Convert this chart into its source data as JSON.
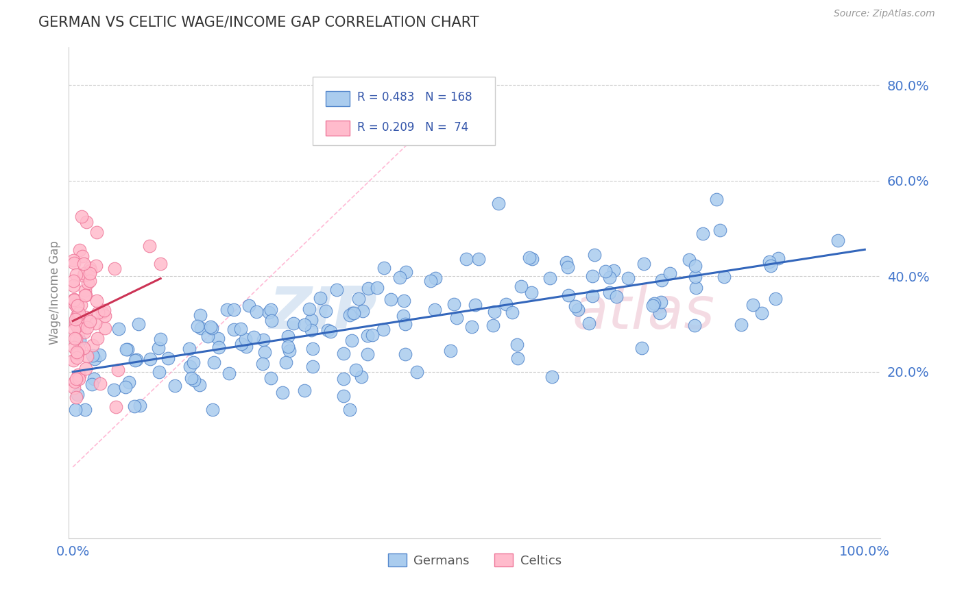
{
  "title": "GERMAN VS CELTIC WAGE/INCOME GAP CORRELATION CHART",
  "source_text": "Source: ZipAtlas.com",
  "ylabel": "Wage/Income Gap",
  "german_R": 0.483,
  "german_N": 168,
  "celtic_R": 0.209,
  "celtic_N": 74,
  "german_fill_color": "#aaccee",
  "german_edge_color": "#5588cc",
  "celtic_fill_color": "#ffbbcc",
  "celtic_edge_color": "#ee7799",
  "trend_german_color": "#3366bb",
  "trend_celtic_color": "#cc3355",
  "ref_line_color": "#ffaacc",
  "legend_box_color": "#aaccee",
  "legend_pink_color": "#ffbbcc",
  "legend_text_color": "#3355aa",
  "legend_label_color": "#333333",
  "background_color": "#ffffff",
  "grid_color": "#cccccc",
  "title_color": "#333333",
  "tick_color": "#4477cc",
  "watermark_color": "#ddeeff",
  "watermark_color2": "#ddbbcc",
  "ytick_positions": [
    0.2,
    0.4,
    0.6,
    0.8
  ],
  "ylim_low": -0.15,
  "ylim_high": 0.88,
  "xlim_low": -0.005,
  "xlim_high": 1.02
}
